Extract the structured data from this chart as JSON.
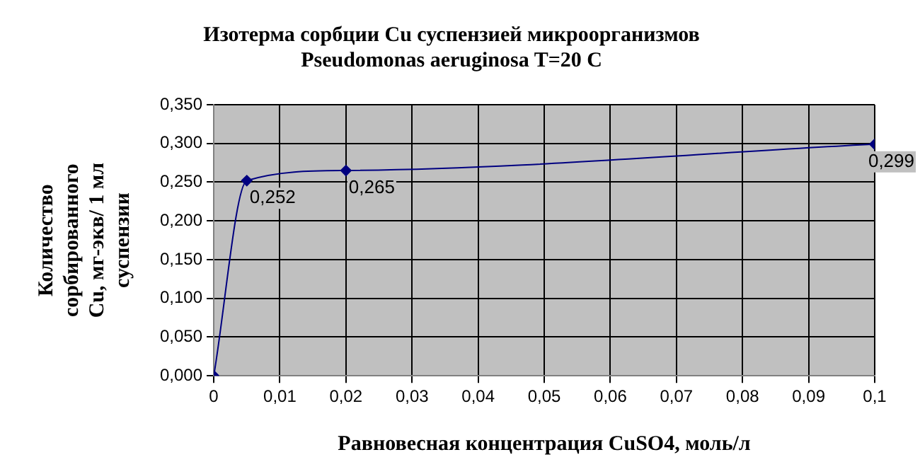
{
  "chart_data": {
    "type": "line",
    "title": "Изотерма сорбции Cu суспензией микроорганизмов Pseudomonas aeruginosa T=20 C",
    "xlabel": "Равновесная концентрация CuSO4, моль/л",
    "ylabel": "Количество сорбированного Cu, мг-экв/ 1 мл суспензии",
    "x": [
      0,
      0.005,
      0.02,
      0.1
    ],
    "series": [
      {
        "color": "#000080",
        "values": [
          0,
          0.252,
          0.265,
          0.299
        ],
        "value_labels": [
          null,
          "0,252",
          "0,265",
          "0,299"
        ]
      }
    ],
    "xlim": [
      0,
      0.1
    ],
    "xticks": [
      0,
      {
        "value": 0.01,
        "label": "0,01"
      },
      {
        "value": 0.02,
        "label": "0,02"
      },
      {
        "value": 0.03,
        "label": "0,03"
      },
      {
        "value": 0.04,
        "label": "0,04"
      },
      {
        "value": 0.05,
        "label": "0,05"
      },
      {
        "value": 0.06,
        "label": "0,06"
      },
      {
        "value": 0.07,
        "label": "0,07"
      },
      {
        "value": 0.08,
        "label": "0,08"
      },
      {
        "value": 0.09,
        "label": "0,09"
      },
      {
        "value": 0.1,
        "label": "0,1"
      }
    ],
    "ylim": [
      0,
      0.35
    ],
    "yticks": [
      {
        "value": 0,
        "label": "0,000"
      },
      {
        "value": 0.05,
        "label": "0,050"
      },
      {
        "value": 0.1,
        "label": "0,100"
      },
      {
        "value": 0.15,
        "label": "0,150"
      },
      {
        "value": 0.2,
        "label": "0,200"
      },
      {
        "value": 0.25,
        "label": "0,250"
      },
      {
        "value": 0.3,
        "label": "0,300"
      },
      {
        "value": 0.35,
        "label": "0,350"
      }
    ],
    "grid": true,
    "legend": false,
    "marker": "diamond",
    "line_style": "solid"
  }
}
